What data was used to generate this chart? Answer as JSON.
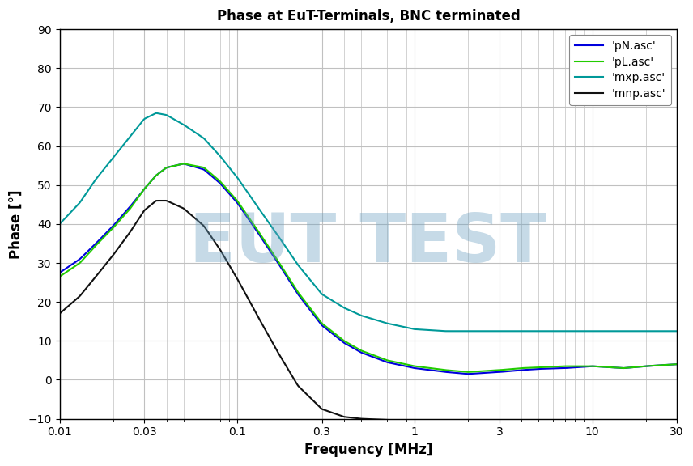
{
  "title": "Phase at EuT-Terminals, BNC terminated",
  "xlabel": "Frequency [MHz]",
  "ylabel": "Phase [°]",
  "ylim": [
    -10,
    90
  ],
  "yticks": [
    -10,
    0,
    10,
    20,
    30,
    40,
    50,
    60,
    70,
    80,
    90
  ],
  "xtick_vals": [
    0.01,
    0.03,
    0.1,
    0.3,
    1,
    3,
    10,
    30
  ],
  "xtick_labels": [
    "0.01",
    "0.03",
    "0.1",
    "0.3",
    "1",
    "3",
    "10",
    "30"
  ],
  "watermark": "EUT TEST",
  "watermark_color": "#6a9fc0",
  "watermark_alpha": 0.38,
  "series": [
    {
      "label": "'pN.asc'",
      "color": "#0000dd",
      "lw": 1.5,
      "freq": [
        0.01,
        0.013,
        0.016,
        0.02,
        0.025,
        0.03,
        0.035,
        0.04,
        0.05,
        0.065,
        0.08,
        0.1,
        0.13,
        0.17,
        0.22,
        0.3,
        0.4,
        0.5,
        0.7,
        1.0,
        1.5,
        2.0,
        3.0,
        4.0,
        5.0,
        7.0,
        10.0,
        15.0,
        20.0,
        25.0,
        30.0
      ],
      "phase": [
        27.5,
        31.0,
        35.0,
        39.5,
        44.5,
        49.0,
        52.5,
        54.5,
        55.5,
        54.0,
        50.5,
        45.5,
        38.0,
        30.0,
        22.0,
        14.0,
        9.5,
        7.0,
        4.5,
        3.0,
        2.0,
        1.5,
        2.0,
        2.5,
        2.8,
        3.0,
        3.5,
        3.0,
        3.5,
        3.8,
        4.0
      ]
    },
    {
      "label": "'pL.asc'",
      "color": "#22cc00",
      "lw": 1.5,
      "freq": [
        0.01,
        0.013,
        0.016,
        0.02,
        0.025,
        0.03,
        0.035,
        0.04,
        0.05,
        0.065,
        0.08,
        0.1,
        0.13,
        0.17,
        0.22,
        0.3,
        0.4,
        0.5,
        0.7,
        1.0,
        1.5,
        2.0,
        3.0,
        4.0,
        5.0,
        7.0,
        10.0,
        15.0,
        20.0,
        25.0,
        30.0
      ],
      "phase": [
        26.5,
        30.0,
        34.5,
        39.0,
        44.0,
        49.0,
        52.5,
        54.5,
        55.5,
        54.5,
        51.0,
        46.0,
        38.5,
        30.5,
        22.5,
        14.5,
        10.0,
        7.5,
        5.0,
        3.5,
        2.5,
        2.0,
        2.5,
        3.0,
        3.2,
        3.5,
        3.5,
        3.0,
        3.5,
        3.8,
        4.0
      ]
    },
    {
      "label": "'mxp.asc'",
      "color": "#009999",
      "lw": 1.5,
      "freq": [
        0.01,
        0.013,
        0.016,
        0.02,
        0.025,
        0.03,
        0.035,
        0.04,
        0.05,
        0.065,
        0.08,
        0.1,
        0.13,
        0.17,
        0.22,
        0.3,
        0.4,
        0.5,
        0.7,
        1.0,
        1.5,
        2.0,
        3.0,
        4.0,
        5.0,
        7.0,
        10.0,
        15.0,
        20.0,
        25.0,
        30.0
      ],
      "phase": [
        40.0,
        45.5,
        51.5,
        57.0,
        62.5,
        67.0,
        68.5,
        68.0,
        65.5,
        62.0,
        57.5,
        52.0,
        44.5,
        37.0,
        29.5,
        22.0,
        18.5,
        16.5,
        14.5,
        13.0,
        12.5,
        12.5,
        12.5,
        12.5,
        12.5,
        12.5,
        12.5,
        12.5,
        12.5,
        12.5,
        12.5
      ]
    },
    {
      "label": "'mnp.asc'",
      "color": "#111111",
      "lw": 1.5,
      "freq": [
        0.01,
        0.013,
        0.016,
        0.02,
        0.025,
        0.03,
        0.035,
        0.04,
        0.05,
        0.065,
        0.08,
        0.1,
        0.13,
        0.17,
        0.22,
        0.3,
        0.4,
        0.5,
        0.7,
        1.0,
        1.5,
        2.0,
        3.0,
        4.0,
        5.0,
        7.0,
        10.0,
        15.0,
        20.0,
        25.0,
        30.0
      ],
      "phase": [
        17.0,
        21.5,
        26.5,
        32.0,
        38.0,
        43.5,
        46.0,
        46.0,
        44.0,
        39.5,
        33.5,
        26.0,
        16.5,
        7.0,
        -1.5,
        -7.5,
        -9.5,
        -10.0,
        -10.3,
        -10.5,
        -10.5,
        -10.5,
        -10.5,
        -10.5,
        -10.5,
        -10.5,
        -10.5,
        -10.5,
        -10.5,
        -10.5,
        -10.5
      ]
    }
  ],
  "background_color": "#ffffff",
  "plot_bg": "#ffffff",
  "grid_color": "#c0c0c0",
  "grid_lw_major": 0.8,
  "grid_lw_minor": 0.5
}
